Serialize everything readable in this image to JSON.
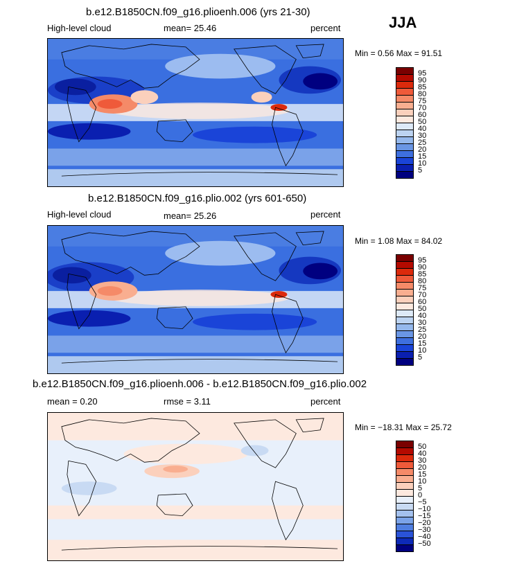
{
  "season": "JJA",
  "panels": [
    {
      "title": "b.e12.B1850CN.f09_g16.plioenh.006 (yrs 21-30)",
      "left_label": "High-level cloud",
      "center_label": "mean=  25.46",
      "right_label": "percent",
      "stats": "Min =   0.56 Max =  91.51",
      "colorbar": {
        "labels": [
          "95",
          "90",
          "85",
          "80",
          "75",
          "70",
          "60",
          "50",
          "40",
          "30",
          "25",
          "20",
          "15",
          "10",
          "5"
        ],
        "colors": [
          "#7a0000",
          "#b40a00",
          "#dc2a0c",
          "#ef5a3a",
          "#f58a68",
          "#f9ae90",
          "#fbd0bc",
          "#fde9df",
          "#dde9f7",
          "#bcd3f1",
          "#95b8ec",
          "#6a96e4",
          "#3e6fde",
          "#1a44d8",
          "#0a1fb0",
          "#000080"
        ]
      }
    },
    {
      "title": "b.e12.B1850CN.f09_g16.plio.002 (yrs 601-650)",
      "left_label": "High-level cloud",
      "center_label": "mean=  25.26",
      "right_label": "percent",
      "stats": "Min =   1.08 Max =  84.02",
      "colorbar": {
        "labels": [
          "95",
          "90",
          "85",
          "80",
          "75",
          "70",
          "60",
          "50",
          "40",
          "30",
          "25",
          "20",
          "15",
          "10",
          "5"
        ],
        "colors": [
          "#7a0000",
          "#b40a00",
          "#dc2a0c",
          "#ef5a3a",
          "#f58a68",
          "#f9ae90",
          "#fbd0bc",
          "#fde9df",
          "#dde9f7",
          "#bcd3f1",
          "#95b8ec",
          "#6a96e4",
          "#3e6fde",
          "#1a44d8",
          "#0a1fb0",
          "#000080"
        ]
      }
    },
    {
      "title": "b.e12.B1850CN.f09_g16.plioenh.006 - b.e12.B1850CN.f09_g16.plio.002",
      "left_label": "mean =   0.20",
      "center_label": "rmse =   3.11",
      "right_label": "percent",
      "stats": "Min = −18.31 Max =  25.72",
      "colorbar": {
        "labels": [
          "50",
          "40",
          "30",
          "20",
          "15",
          "10",
          "5",
          "0",
          "−5",
          "−10",
          "−15",
          "−20",
          "−30",
          "−40",
          "−50"
        ],
        "colors": [
          "#7a0000",
          "#b40a00",
          "#dc2a0c",
          "#ef5a3a",
          "#f58a68",
          "#f9ae90",
          "#fbd0bc",
          "#fde9df",
          "#e8f0fb",
          "#c8daf3",
          "#a4c1ee",
          "#7ba3e8",
          "#4f7ee0",
          "#2a53d8",
          "#0d2ab8",
          "#000080"
        ]
      }
    }
  ]
}
